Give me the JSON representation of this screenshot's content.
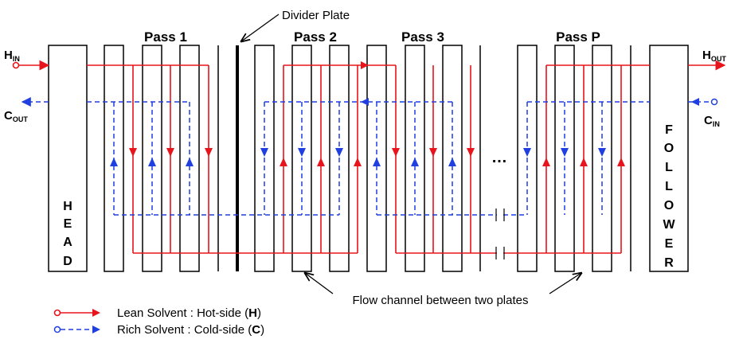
{
  "labels": {
    "divider": "Divider Plate",
    "pass1": "Pass 1",
    "pass2": "Pass 2",
    "pass3": "Pass 3",
    "passP": "Pass P",
    "h_in_main": "H",
    "h_in_sub": "IN",
    "c_out_main": "C",
    "c_out_sub": "OUT",
    "h_out_main": "H",
    "h_out_sub": "OUT",
    "c_in_main": "C",
    "c_in_sub": "IN",
    "head_letters": [
      "H",
      "E",
      "A",
      "D"
    ],
    "follower_letters": [
      "F",
      "O",
      "L",
      "L",
      "O",
      "W",
      "E",
      "R"
    ],
    "ellipsis": "…",
    "flow_channel": "Flow channel between two plates"
  },
  "legend": {
    "lean_prefix": "Lean  Solvent : Hot-side (",
    "lean_key": "H",
    "lean_suffix": ")",
    "rich_prefix": "Rich  Solvent : Cold-side (",
    "rich_key": "C",
    "rich_suffix": ")"
  },
  "colors": {
    "hot": "#e8141c",
    "cold": "#1f3fe0",
    "plate": "#000000"
  }
}
